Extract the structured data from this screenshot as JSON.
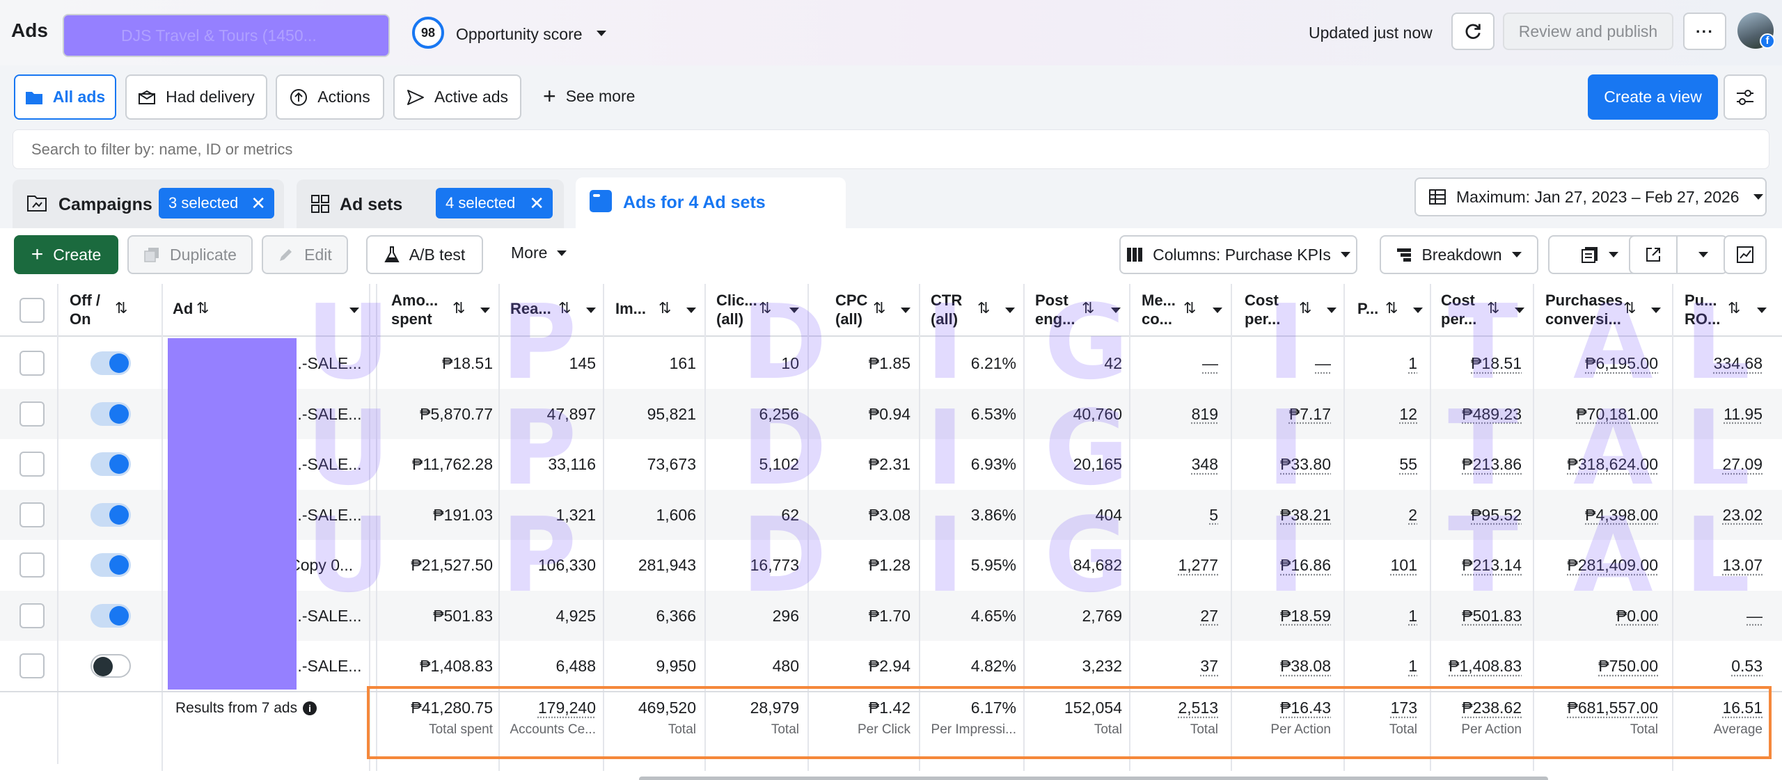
{
  "header": {
    "app_title": "Ads",
    "account_selector": "DJS Travel & Tours (1450...",
    "opportunity_score_value": "98",
    "opportunity_score_label": "Opportunity score",
    "updated_text": "Updated just now",
    "review_publish_label": "Review and publish",
    "more_label": "···"
  },
  "view_tabs": {
    "items": [
      "All ads",
      "Had delivery",
      "Actions",
      "Active ads"
    ],
    "see_more": "See more",
    "create_view": "Create a view"
  },
  "search": {
    "placeholder": "Search to filter by: name, ID or metrics"
  },
  "level_tabs": {
    "campaigns_label": "Campaigns",
    "campaigns_selected": "3 selected",
    "adsets_label": "Ad sets",
    "adsets_selected": "4 selected",
    "ads_label": "Ads for 4 Ad sets"
  },
  "date_range": "Maximum: Jan 27, 2023 – Feb 27, 2026",
  "toolbar": {
    "create": "Create",
    "duplicate": "Duplicate",
    "edit": "Edit",
    "ab_test": "A/B test",
    "more": "More",
    "columns": "Columns: Purchase KPIs",
    "breakdown": "Breakdown"
  },
  "columns": {
    "off_on": [
      "Off /",
      "On"
    ],
    "ad": "Ad",
    "amount": [
      "Amo...",
      "spent"
    ],
    "reach": "Rea...",
    "impressions": "Im...",
    "clicks": [
      "Clic...",
      "(all)"
    ],
    "cpc": [
      "CPC",
      "(all)"
    ],
    "ctr": [
      "CTR",
      "(all)"
    ],
    "post": [
      "Post",
      "eng..."
    ],
    "messaging": [
      "Me...",
      "co..."
    ],
    "cost_per_msg": [
      "Cost",
      "per..."
    ],
    "purchases": "P...",
    "cost_per_purchase": [
      "Cost",
      "per..."
    ],
    "purchases_conv": [
      "Purchases",
      "conversi..."
    ],
    "roas": [
      "Pu...",
      "RO..."
    ]
  },
  "rows": [
    {
      "on": true,
      "name": "UPD | B...-SALE...",
      "amount": "₱18.51",
      "reach": "145",
      "impr": "161",
      "clicks": "10",
      "cpc": "₱1.85",
      "ctr": "6.21%",
      "post": "42",
      "msg": "—",
      "cpm": "—",
      "purch": "1",
      "cpp": "₱18.51",
      "conv": "₱6,195.00",
      "roas": "334.68"
    },
    {
      "on": true,
      "name": "UPD | B...-SALE...",
      "amount": "₱5,870.77",
      "reach": "47,897",
      "impr": "95,821",
      "clicks": "6,256",
      "cpc": "₱0.94",
      "ctr": "6.53%",
      "post": "40,760",
      "msg": "819",
      "cpm": "₱7.17",
      "purch": "12",
      "cpp": "₱489.23",
      "conv": "₱70,181.00",
      "roas": "11.95"
    },
    {
      "on": true,
      "name": "UPD | B...-SALE...",
      "amount": "₱11,762.28",
      "reach": "33,116",
      "impr": "73,673",
      "clicks": "5,102",
      "cpc": "₱2.31",
      "ctr": "6.93%",
      "post": "20,165",
      "msg": "348",
      "cpm": "₱33.80",
      "purch": "55",
      "cpp": "₱213.86",
      "conv": "₱318,624.00",
      "roas": "27.09"
    },
    {
      "on": true,
      "name": "UPD | B...-SALE...",
      "amount": "₱191.03",
      "reach": "1,321",
      "impr": "1,606",
      "clicks": "62",
      "cpc": "₱3.08",
      "ctr": "3.86%",
      "post": "404",
      "msg": "5",
      "cpm": "₱38.21",
      "purch": "2",
      "cpp": "₱95.52",
      "conv": "₱4,398.00",
      "roas": "23.02"
    },
    {
      "on": true,
      "name": "AD 010 Copy 0...",
      "amount": "₱21,527.50",
      "reach": "106,330",
      "impr": "281,943",
      "clicks": "16,773",
      "cpc": "₱1.28",
      "ctr": "5.95%",
      "post": "84,682",
      "msg": "1,277",
      "cpm": "₱16.86",
      "purch": "101",
      "cpp": "₱213.14",
      "conv": "₱281,409.00",
      "roas": "13.07"
    },
    {
      "on": true,
      "name": "UPD | B...-SALE...",
      "amount": "₱501.83",
      "reach": "4,925",
      "impr": "6,366",
      "clicks": "296",
      "cpc": "₱1.70",
      "ctr": "4.65%",
      "post": "2,769",
      "msg": "27",
      "cpm": "₱18.59",
      "purch": "1",
      "cpp": "₱501.83",
      "conv": "₱0.00",
      "roas": "—"
    },
    {
      "on": false,
      "name": "UPD | B...-SALE...",
      "amount": "₱1,408.83",
      "reach": "6,488",
      "impr": "9,950",
      "clicks": "480",
      "cpc": "₱2.94",
      "ctr": "4.82%",
      "post": "3,232",
      "msg": "37",
      "cpm": "₱38.08",
      "purch": "1",
      "cpp": "₱1,408.83",
      "conv": "₱750.00",
      "roas": "0.53"
    }
  ],
  "totals": {
    "label": "Results from 7 ads",
    "amount": {
      "v": "₱41,280.75",
      "l": "Total spent"
    },
    "reach": {
      "v": "179,240",
      "l": "Accounts Ce..."
    },
    "impr": {
      "v": "469,520",
      "l": "Total"
    },
    "clicks": {
      "v": "28,979",
      "l": "Total"
    },
    "cpc": {
      "v": "₱1.42",
      "l": "Per Click"
    },
    "ctr": {
      "v": "6.17%",
      "l": "Per Impressi..."
    },
    "post": {
      "v": "152,054",
      "l": "Total"
    },
    "msg": {
      "v": "2,513",
      "l": "Total"
    },
    "cpm": {
      "v": "₱16.43",
      "l": "Per Action"
    },
    "purch": {
      "v": "173",
      "l": "Total"
    },
    "cpp": {
      "v": "₱238.62",
      "l": "Per Action"
    },
    "conv": {
      "v": "₱681,557.00",
      "l": "Total"
    },
    "roas": {
      "v": "16.51",
      "l": "Average"
    }
  },
  "watermark": [
    "U",
    "P",
    "D",
    "I",
    "G",
    "I",
    "T",
    "A",
    "L"
  ],
  "colors": {
    "brand_blue": "#1877f2",
    "create_green": "#1b6a3e",
    "highlight_orange": "#f5883b",
    "redaction_purple": "#9580ff"
  }
}
